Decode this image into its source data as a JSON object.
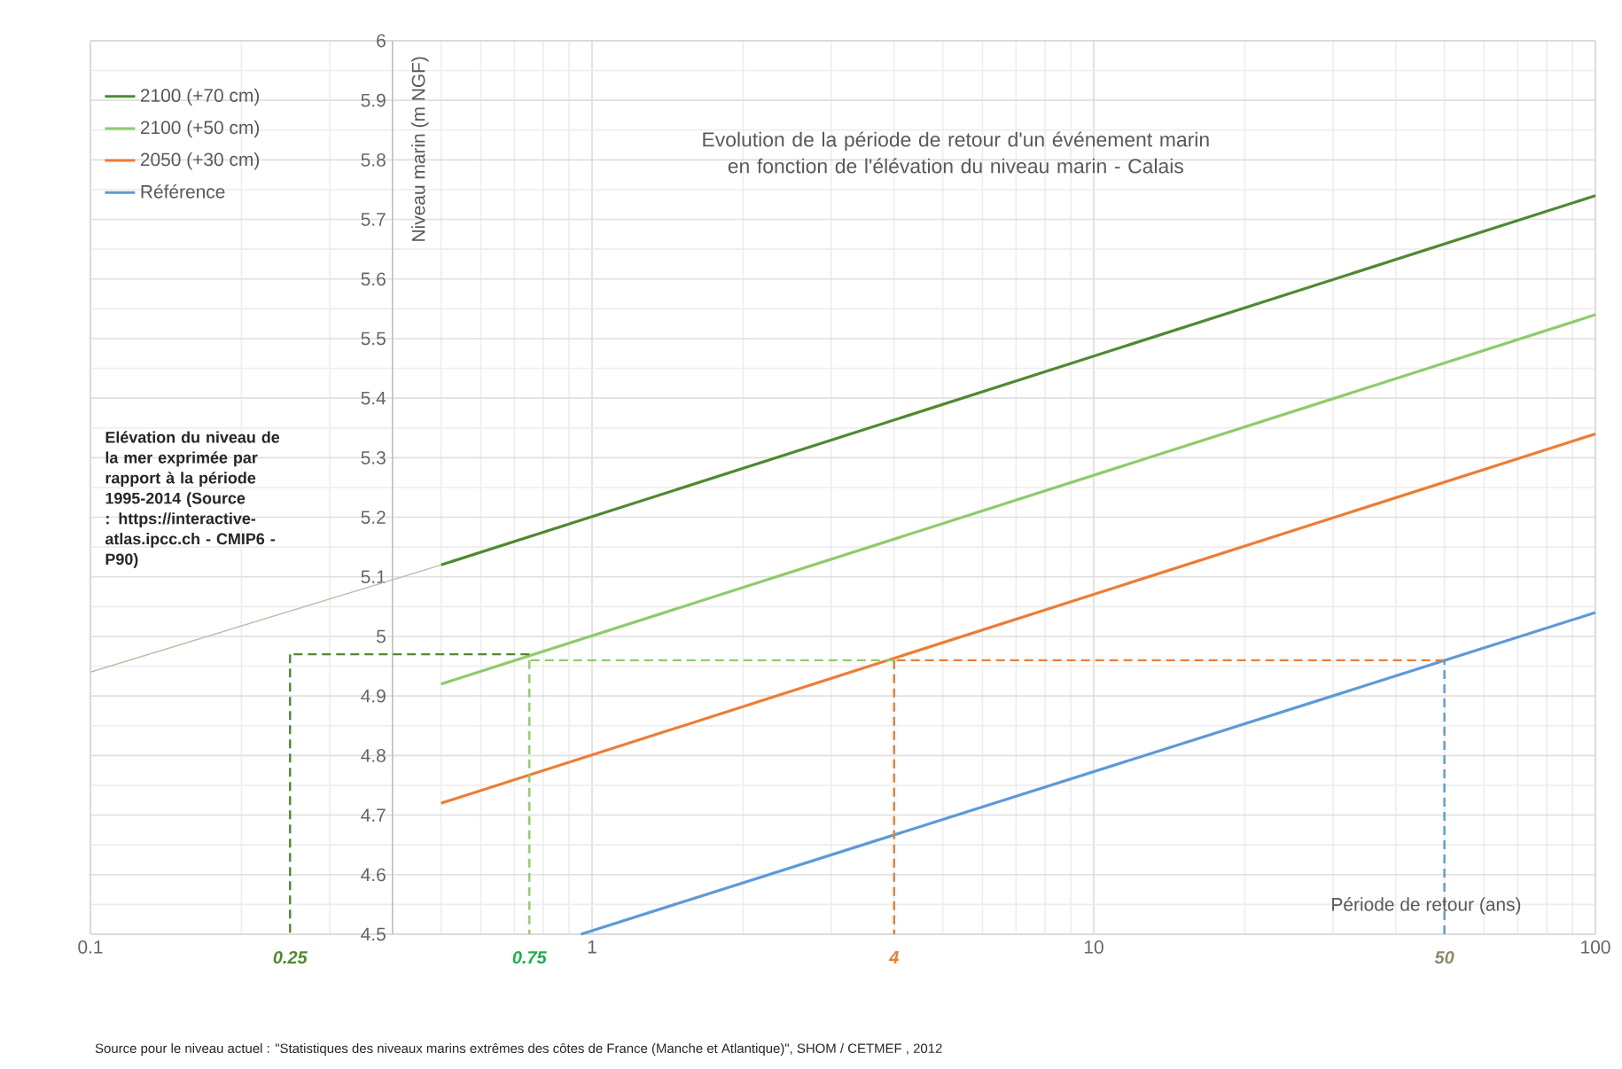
{
  "chart_data": {
    "type": "line",
    "title": "Evolution de la période de retour d'un événement marin en fonction de l'élévation du niveau marin - Calais",
    "xlabel": "Période de retour (ans)",
    "ylabel": "Niveau marin  (m NGF)",
    "log": "x",
    "grid": true,
    "legend": "top left",
    "marker": "none",
    "xlim": [
      0.1,
      100
    ],
    "ylim": [
      4.5,
      6
    ],
    "xticks": [
      0.1,
      1,
      10,
      100
    ],
    "yticks": [
      4.5,
      4.6,
      4.7,
      4.8,
      4.9,
      5,
      5.1,
      5.2,
      5.3,
      5.4,
      5.5,
      5.6,
      5.7,
      5.8,
      5.9,
      6
    ],
    "series": [
      {
        "name": "2100 (+70 cm)",
        "color": "#4f8a2e",
        "x": [
          0.5,
          100
        ],
        "values": [
          5.12,
          5.74
        ]
      },
      {
        "name": "2100 (+50 cm)",
        "color": "#8fcb6b",
        "x": [
          0.5,
          100
        ],
        "values": [
          4.92,
          5.54
        ]
      },
      {
        "name": "2050 (+30 cm)",
        "color": "#ed7d31",
        "x": [
          0.5,
          100
        ],
        "values": [
          4.72,
          5.34
        ]
      },
      {
        "name": "Référence",
        "color": "#5b9bd5",
        "x": [
          0.95,
          100
        ],
        "values": [
          4.5,
          5.04
        ]
      },
      {
        "color": "#b4c2a8",
        "x": [
          0.1,
          0.5
        ],
        "values": [
          4.94,
          5.12
        ]
      },
      {
        "color": "#4f8a2e",
        "line_style": "dashed",
        "x": [
          0.75,
          0.25
        ],
        "values": [
          4.97,
          4.97
        ]
      },
      {
        "color": "#4f8a2e",
        "line_style": "dashed",
        "x": [
          0.25,
          0.25
        ],
        "values": [
          4.97,
          4.5
        ]
      },
      {
        "color": "#8fcb6b",
        "line_style": "dashed",
        "x": [
          4,
          0.75
        ],
        "values": [
          4.96,
          4.96
        ]
      },
      {
        "color": "#8fcb6b",
        "line_style": "dashed",
        "x": [
          0.75,
          0.75
        ],
        "values": [
          4.96,
          4.5
        ]
      },
      {
        "color": "#ed7d31",
        "line_style": "dashed",
        "x": [
          50,
          4
        ],
        "values": [
          4.96,
          4.96
        ]
      },
      {
        "color": "#ed7d31",
        "line_style": "dashed",
        "x": [
          4,
          4
        ],
        "values": [
          4.96,
          4.5
        ]
      },
      {
        "color": "#5b9bd5",
        "line_style": "dashed",
        "x": [
          50,
          50
        ],
        "values": [
          4.5,
          4.96
        ]
      }
    ],
    "annotations": [
      "Elévation du niveau de la mer exprimée par rapport à la période 1995-2014 (Source : https://interactive-atlas.ipcc.ch - CMIP6 - P90)",
      {
        "text": "0.25",
        "x": 0.25,
        "y": 4.5
      },
      {
        "text": "0.75",
        "x": 0.75,
        "y": 4.5
      },
      {
        "text": "4",
        "x": 4,
        "y": 4.5
      },
      {
        "text": "50",
        "x": 50,
        "y": 4.5
      },
      "Source pour le niveau actuel : \"Statistiques des niveaux marins extrêmes des côtes de France (Manche et Atlantique)\", SHOM / CETMEF , 2012"
    ]
  }
}
